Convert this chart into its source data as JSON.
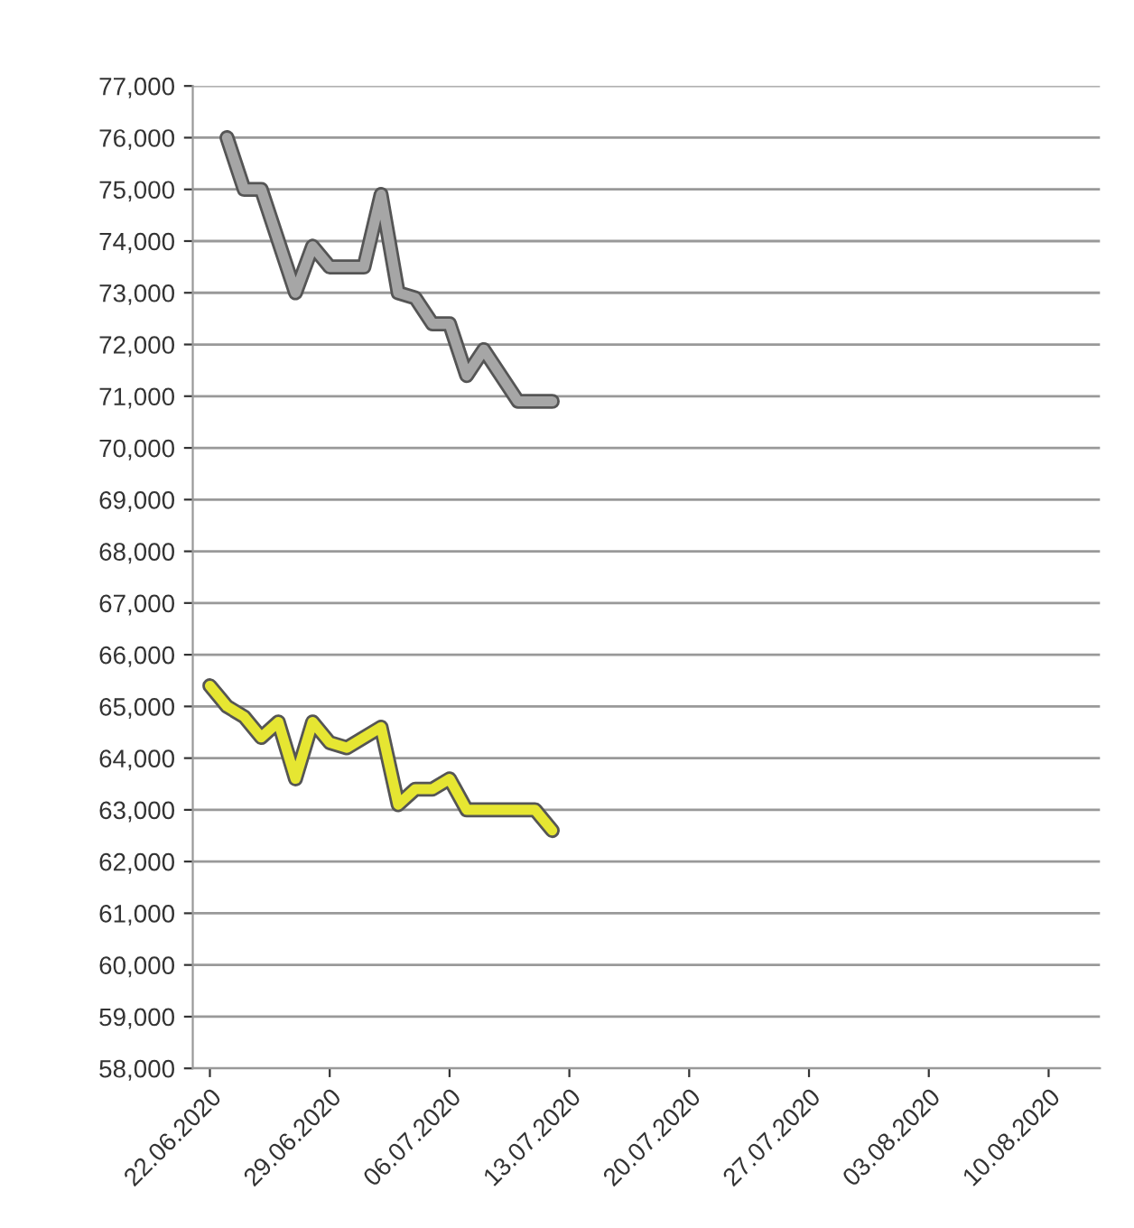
{
  "chart_data": {
    "type": "line",
    "grid": "y",
    "legend": false,
    "marker": "none",
    "line_style": "solid",
    "xlim": [
      "2020-06-21",
      "2020-08-13"
    ],
    "xticks": [
      {
        "value": "2020-06-22",
        "label": "22.06.2020"
      },
      {
        "value": "2020-06-29",
        "label": "29.06.2020"
      },
      {
        "value": "2020-07-06",
        "label": "06.07.2020"
      },
      {
        "value": "2020-07-13",
        "label": "13.07.2020"
      },
      {
        "value": "2020-07-20",
        "label": "20.07.2020"
      },
      {
        "value": "2020-07-27",
        "label": "27.07.2020"
      },
      {
        "value": "2020-08-03",
        "label": "03.08.2020"
      },
      {
        "value": "2020-08-10",
        "label": "10.08.2020"
      }
    ],
    "ylim": [
      58000,
      77000
    ],
    "yticks": [
      {
        "value": 58000,
        "label": "58,000"
      },
      {
        "value": 59000,
        "label": "59,000"
      },
      {
        "value": 60000,
        "label": "60,000"
      },
      {
        "value": 61000,
        "label": "61,000"
      },
      {
        "value": 62000,
        "label": "62,000"
      },
      {
        "value": 63000,
        "label": "63,000"
      },
      {
        "value": 64000,
        "label": "64,000"
      },
      {
        "value": 65000,
        "label": "65,000"
      },
      {
        "value": 66000,
        "label": "66,000"
      },
      {
        "value": 67000,
        "label": "67,000"
      },
      {
        "value": 68000,
        "label": "68,000"
      },
      {
        "value": 69000,
        "label": "69,000"
      },
      {
        "value": 70000,
        "label": "70,000"
      },
      {
        "value": 71000,
        "label": "71,000"
      },
      {
        "value": 72000,
        "label": "72,000"
      },
      {
        "value": 73000,
        "label": "73,000"
      },
      {
        "value": 74000,
        "label": "74,000"
      },
      {
        "value": 75000,
        "label": "75,000"
      },
      {
        "value": 76000,
        "label": "76,000"
      },
      {
        "value": 77000,
        "label": "77,000"
      }
    ],
    "series": [
      {
        "color": "#a6a6a6",
        "x": [
          "2020-06-23",
          "2020-06-24",
          "2020-06-25",
          "2020-06-27",
          "2020-06-28",
          "2020-06-29",
          "2020-07-01",
          "2020-07-02",
          "2020-07-03",
          "2020-07-04",
          "2020-07-05",
          "2020-07-06",
          "2020-07-07",
          "2020-07-08",
          "2020-07-10",
          "2020-07-12"
        ],
        "values": [
          76000,
          75000,
          75000,
          73000,
          73900,
          73500,
          73500,
          74900,
          73000,
          72900,
          72400,
          72400,
          71400,
          71900,
          70900,
          70900
        ]
      },
      {
        "color": "#e6e632",
        "x": [
          "2020-06-22",
          "2020-06-23",
          "2020-06-24",
          "2020-06-25",
          "2020-06-26",
          "2020-06-27",
          "2020-06-28",
          "2020-06-29",
          "2020-06-30",
          "2020-07-02",
          "2020-07-03",
          "2020-07-04",
          "2020-07-05",
          "2020-07-06",
          "2020-07-07",
          "2020-07-08",
          "2020-07-10",
          "2020-07-11",
          "2020-07-12"
        ],
        "values": [
          65400,
          65000,
          64800,
          64400,
          64700,
          63600,
          64700,
          64300,
          64200,
          64600,
          63100,
          63400,
          63400,
          63600,
          63000,
          63000,
          63000,
          63000,
          62600
        ]
      }
    ]
  }
}
